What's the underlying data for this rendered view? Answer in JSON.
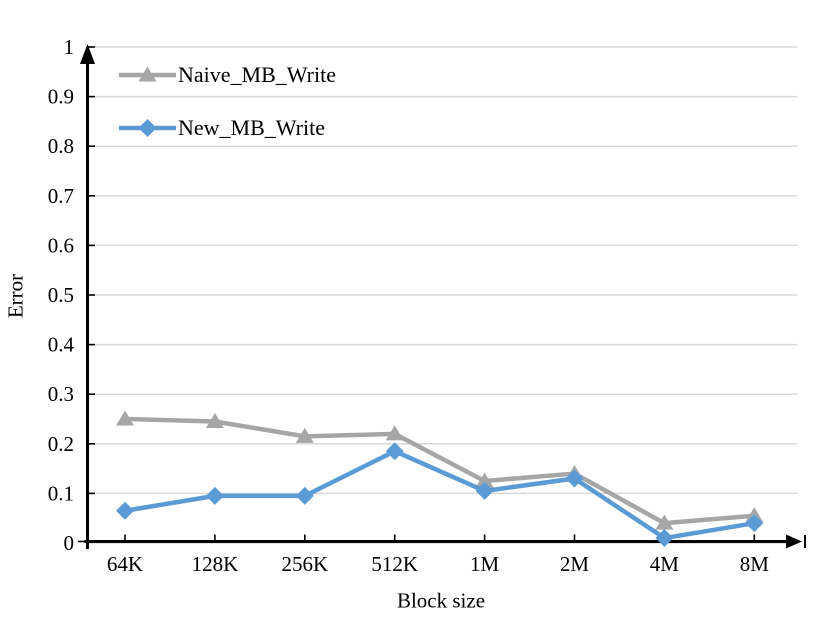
{
  "chart_data": {
    "type": "line",
    "title": "",
    "xlabel": "Block size",
    "ylabel": "Error",
    "categories": [
      "64K",
      "128K",
      "256K",
      "512K",
      "1M",
      "2M",
      "4M",
      "8M"
    ],
    "series": [
      {
        "name": "Naive_MB_Write",
        "color": "#A6A6A6",
        "marker": "triangle",
        "values": [
          0.25,
          0.245,
          0.215,
          0.22,
          0.125,
          0.14,
          0.04,
          0.055
        ]
      },
      {
        "name": "New_MB_Write",
        "color": "#5B9BD5",
        "marker": "diamond",
        "values": [
          0.065,
          0.095,
          0.095,
          0.185,
          0.105,
          0.13,
          0.01,
          0.04
        ]
      }
    ],
    "ylim": [
      0,
      1
    ],
    "ytick_step": 0.1,
    "ytick_labels": [
      "0",
      "0.1",
      "0.2",
      "0.3",
      "0.4",
      "0.5",
      "0.6",
      "0.7",
      "0.8",
      "0.9",
      "1"
    ],
    "grid": "horizontal",
    "gridline_color": "#D9D9D9",
    "axis_color": "#000000",
    "legend_position": "top-left-inside"
  }
}
